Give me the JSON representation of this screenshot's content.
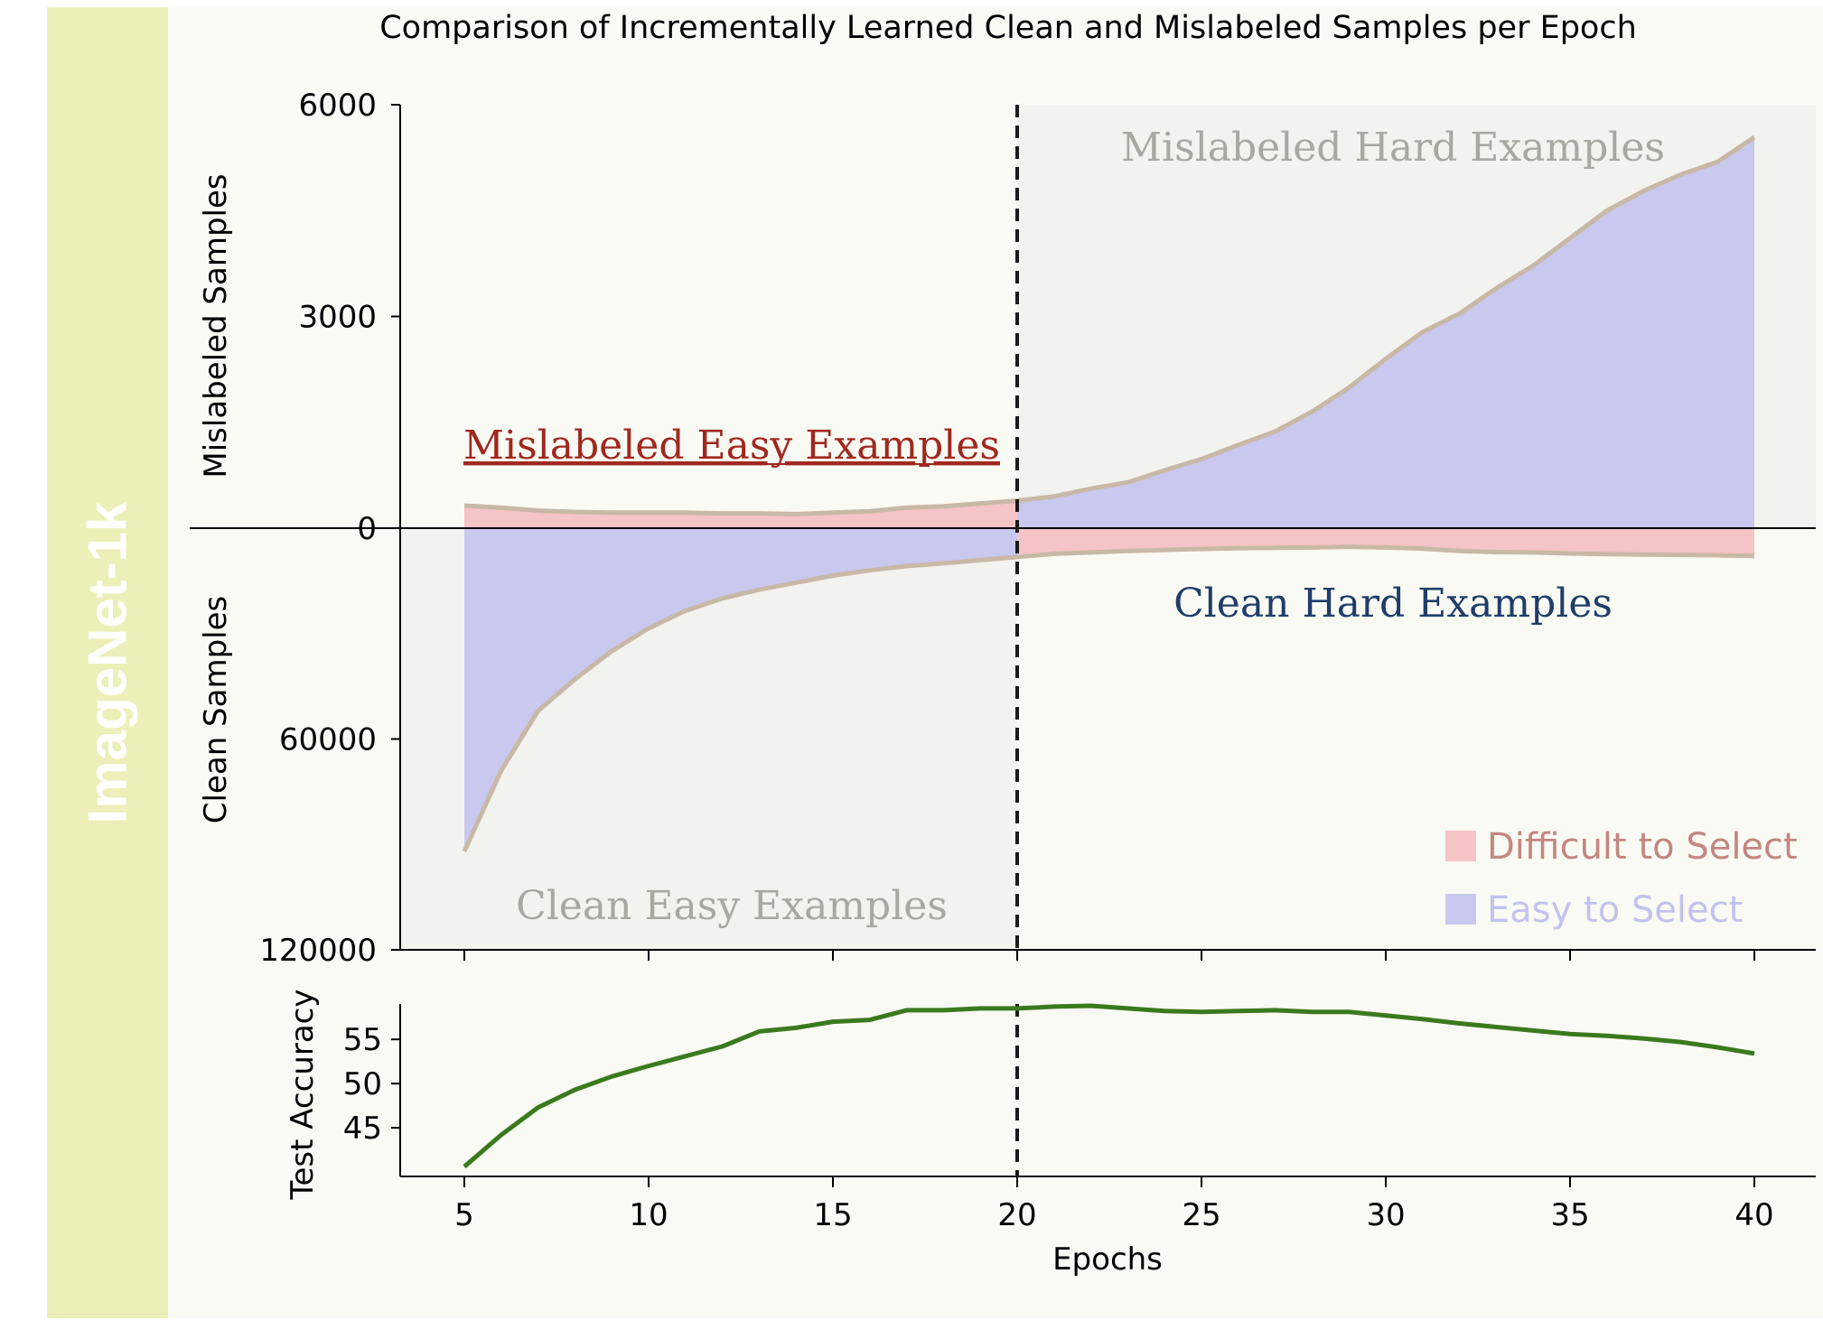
{
  "side_label": "ImageNet-1k",
  "colors": {
    "difficult_fill": "#f4c4c6",
    "easy_fill": "#c9c8ee",
    "curve_edge": "#c8b8a6",
    "shade": "#f2f2ee",
    "accuracy_line": "#3a7a1e",
    "mislabeled_easy_text": "#a0281e",
    "clean_hard_text": "#1f3d6b",
    "gray_text": "#a8a8a0",
    "legend_difficult_text": "#c48680",
    "legend_easy_text": "#c2c2f0"
  },
  "chart_data": [
    {
      "type": "area",
      "title": "Comparison of Incrementally Learned Clean and Mislabeled Samples per Epoch",
      "xlabel": "",
      "ylabel_top": "Mislabeled Samples",
      "ylabel_bottom": "Clean Samples",
      "yticks_top": [
        "6000",
        "3000",
        "0"
      ],
      "yticks_bottom": [
        "60000",
        "120000"
      ],
      "ylim_mislabeled": [
        0,
        6000
      ],
      "ylim_clean": [
        0,
        120000
      ],
      "divider_epoch": 20,
      "regions": {
        "mislabeled_easy": "Mislabeled Easy Examples",
        "mislabeled_hard": "Mislabeled Hard Examples",
        "clean_easy": "Clean Easy Examples",
        "clean_hard": "Clean Hard Examples"
      },
      "legend": [
        "Difficult to Select",
        "Easy to Select"
      ],
      "x": [
        5,
        6,
        7,
        8,
        9,
        10,
        11,
        12,
        13,
        14,
        15,
        16,
        17,
        18,
        19,
        20,
        21,
        22,
        23,
        24,
        25,
        26,
        27,
        28,
        29,
        30,
        31,
        32,
        33,
        34,
        35,
        36,
        37,
        38,
        39,
        40
      ],
      "series": [
        {
          "name": "Mislabeled Samples",
          "values": [
            320,
            290,
            250,
            230,
            220,
            220,
            220,
            210,
            210,
            200,
            220,
            240,
            290,
            310,
            350,
            390,
            450,
            560,
            650,
            820,
            980,
            1180,
            1370,
            1650,
            1990,
            2400,
            2780,
            3040,
            3400,
            3720,
            4110,
            4500,
            4780,
            5010,
            5190,
            5540
          ]
        },
        {
          "name": "Clean Samples",
          "values": [
            92000,
            69000,
            52000,
            43000,
            35000,
            28500,
            23500,
            20000,
            17500,
            15500,
            13500,
            12000,
            10800,
            10000,
            9100,
            8200,
            7300,
            6900,
            6500,
            6200,
            5900,
            5700,
            5600,
            5500,
            5300,
            5500,
            5800,
            6500,
            6800,
            6900,
            7200,
            7400,
            7500,
            7600,
            7700,
            7900
          ]
        }
      ]
    },
    {
      "type": "line",
      "ylabel": "Test Accuracy",
      "xlabel": "Epochs",
      "yticks": [
        "55",
        "50",
        "45"
      ],
      "xticks": [
        "5",
        "10",
        "15",
        "20",
        "25",
        "30",
        "35",
        "40"
      ],
      "ylim": [
        39.5,
        59
      ],
      "x": [
        5,
        6,
        7,
        8,
        9,
        10,
        11,
        12,
        13,
        14,
        15,
        16,
        17,
        18,
        19,
        20,
        21,
        22,
        23,
        24,
        25,
        26,
        27,
        28,
        29,
        30,
        31,
        32,
        33,
        34,
        35,
        36,
        37,
        38,
        39,
        40
      ],
      "series": [
        {
          "name": "Test Accuracy",
          "values": [
            40.6,
            44.2,
            47.3,
            49.3,
            50.8,
            52.0,
            53.1,
            54.2,
            55.9,
            56.3,
            57.0,
            57.2,
            58.3,
            58.3,
            58.5,
            58.5,
            58.7,
            58.8,
            58.5,
            58.2,
            58.1,
            58.2,
            58.3,
            58.1,
            58.1,
            57.7,
            57.3,
            56.8,
            56.4,
            56.0,
            55.6,
            55.4,
            55.1,
            54.7,
            54.1,
            53.4
          ]
        }
      ]
    }
  ]
}
